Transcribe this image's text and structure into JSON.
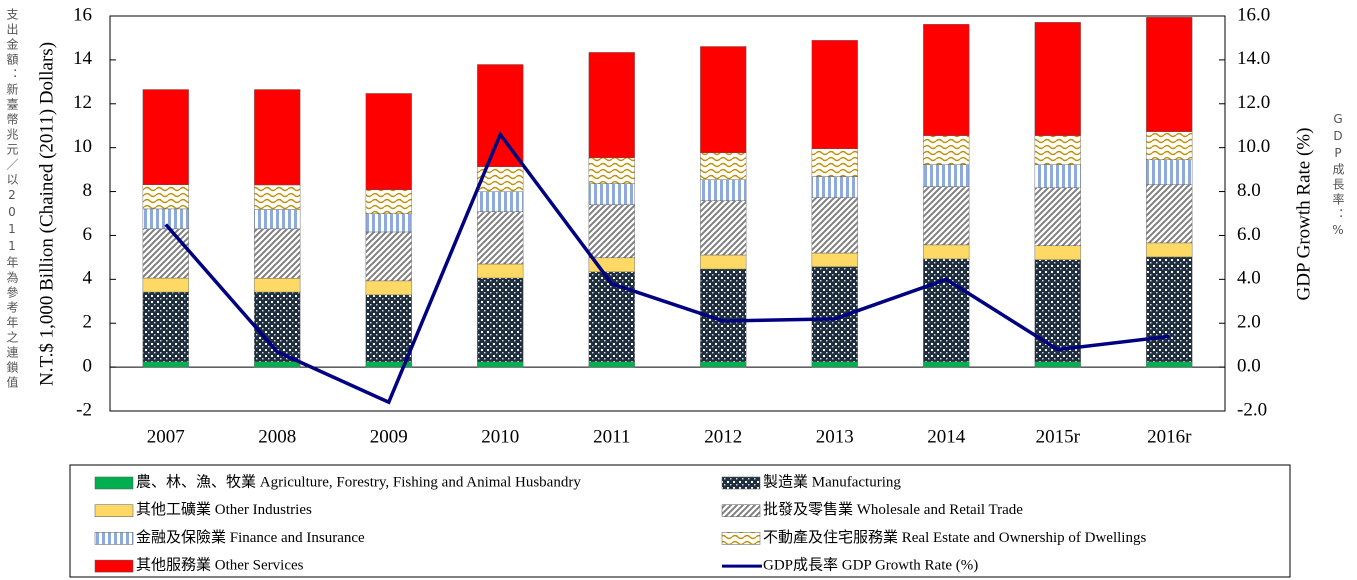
{
  "chart_data": {
    "type": "bar",
    "y_label": "N.T.$ 1,000 Billion (Chained (2011) Dollars)",
    "y_label_zh": "支出金額：新臺幣兆元／以2011年為參考年之連鎖值",
    "y2_label": "GDP Growth Rate (%)",
    "y2_label_zh": "GDP成長率：%",
    "categories": [
      "2007",
      "2008",
      "2009",
      "2010",
      "2011",
      "2012",
      "2013",
      "2014",
      "2015r",
      "2016r"
    ],
    "series": [
      {
        "name": "農、林、漁、牧業 Agriculture, Forestry, Fishing and Animal Husbandry",
        "color": "#00b050",
        "values": [
          0.25,
          0.25,
          0.25,
          0.25,
          0.25,
          0.25,
          0.25,
          0.25,
          0.25,
          0.25
        ]
      },
      {
        "name": "製造業 Manufacturing",
        "color": "#1f2f3f",
        "pattern": "dots",
        "values": [
          3.17,
          3.17,
          3.04,
          3.81,
          4.09,
          4.22,
          4.32,
          4.68,
          4.64,
          4.77
        ]
      },
      {
        "name": "其他工礦業 Other Industries",
        "color": "#ffd966",
        "values": [
          0.64,
          0.63,
          0.64,
          0.64,
          0.64,
          0.64,
          0.63,
          0.64,
          0.64,
          0.64
        ]
      },
      {
        "name": "批發及零售業 Wholesale and Retail Trade",
        "color": "#808080",
        "pattern": "diagonal",
        "values": [
          2.24,
          2.25,
          2.23,
          2.38,
          2.42,
          2.47,
          2.52,
          2.65,
          2.64,
          2.65
        ]
      },
      {
        "name": "金融及保險業 Finance and Insurance",
        "color": "#8ea9db",
        "pattern": "vertical",
        "values": [
          0.91,
          0.88,
          0.83,
          0.91,
          0.96,
          0.96,
          0.96,
          1.0,
          1.05,
          1.14
        ]
      },
      {
        "name": "不動產及住宅服務業 Real Estate and Ownership of Dwellings",
        "color": "#bf9000",
        "pattern": "wave",
        "values": [
          1.1,
          1.12,
          1.09,
          1.14,
          1.18,
          1.23,
          1.27,
          1.33,
          1.33,
          1.28
        ]
      },
      {
        "name": "其他服務業 Other Services",
        "color": "#ff0000",
        "values": [
          4.34,
          4.35,
          4.39,
          4.66,
          4.8,
          4.84,
          4.94,
          5.07,
          5.16,
          5.21
        ]
      },
      {
        "name": "GDP成長率 GDP Growth Rate (%)",
        "color": "#000080",
        "type": "line",
        "axis": "y2",
        "values": [
          6.5,
          0.7,
          -1.6,
          10.6,
          3.8,
          2.1,
          2.2,
          4.0,
          0.8,
          1.4
        ]
      }
    ],
    "ylim": [
      -2,
      16
    ],
    "yticks": [
      -2,
      0,
      2,
      4,
      6,
      8,
      10,
      12,
      14,
      16
    ],
    "y2lim": [
      -2,
      16
    ],
    "y2ticks": [
      {
        "value": -2,
        "label": "-2.0"
      },
      {
        "value": 0,
        "label": "0.0"
      },
      {
        "value": 2,
        "label": "2.0"
      },
      {
        "value": 4,
        "label": "4.0"
      },
      {
        "value": 6,
        "label": "6.0"
      },
      {
        "value": 8,
        "label": "8.0"
      },
      {
        "value": 10,
        "label": "10.0"
      },
      {
        "value": 12,
        "label": "12.0"
      },
      {
        "value": 14,
        "label": "14.0"
      },
      {
        "value": 16,
        "label": "16.0"
      }
    ],
    "grid": false
  }
}
